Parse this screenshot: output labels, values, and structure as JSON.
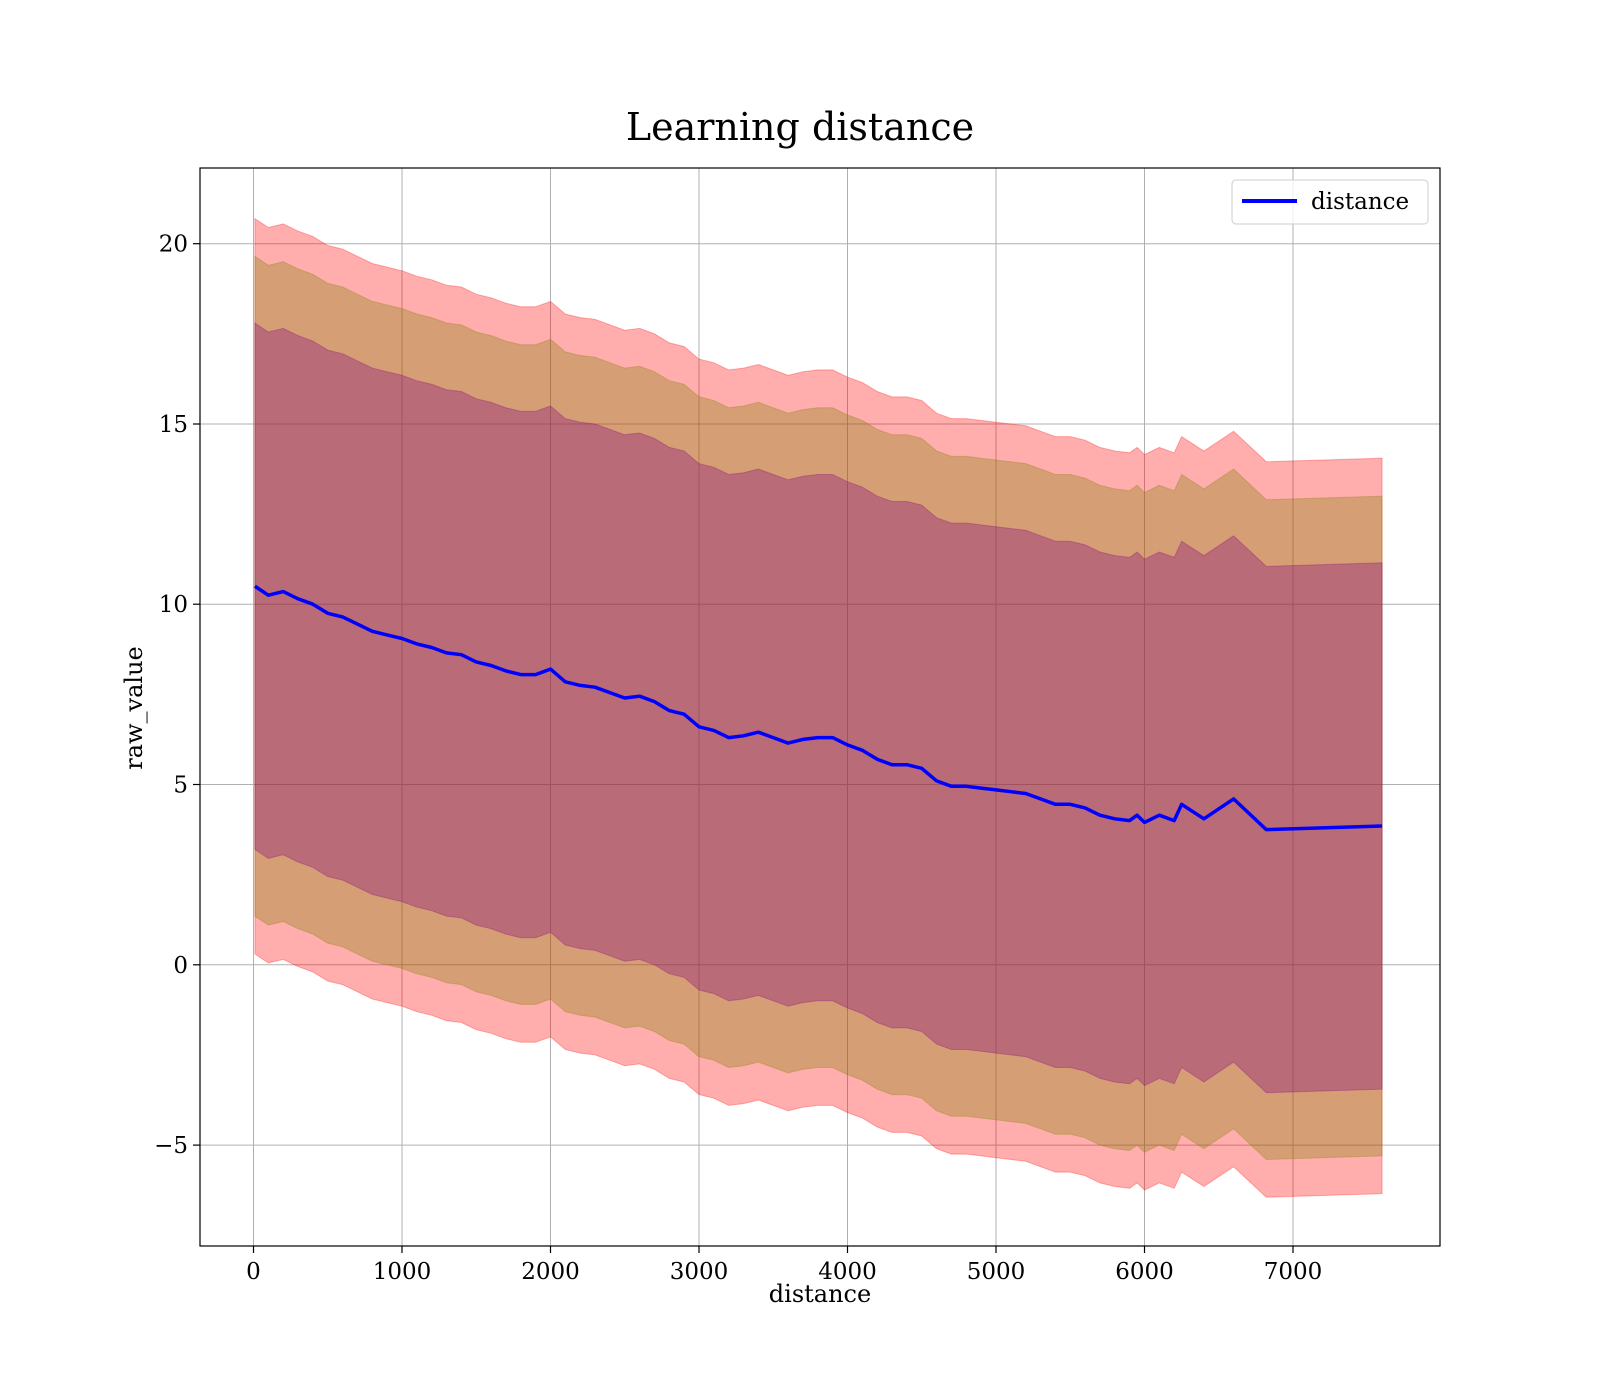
{
  "chart_data": {
    "type": "line",
    "title": "Learning distance",
    "xlabel": "distance",
    "ylabel": "raw_value",
    "xlim": [
      -360,
      7990
    ],
    "ylim": [
      -7.8,
      22.1
    ],
    "x_ticks": [
      0,
      1000,
      2000,
      3000,
      4000,
      5000,
      6000,
      7000
    ],
    "y_ticks": [
      -5,
      0,
      5,
      10,
      15,
      20
    ],
    "x_tick_labels": [
      "0",
      "1000",
      "2000",
      "3000",
      "4000",
      "5000",
      "6000",
      "7000"
    ],
    "y_tick_labels": [
      "−5",
      "0",
      "5",
      "10",
      "15",
      "20"
    ],
    "grid": true,
    "legend_position": "top-right",
    "x": [
      10,
      100,
      200,
      300,
      400,
      500,
      600,
      700,
      800,
      900,
      1000,
      1100,
      1200,
      1300,
      1400,
      1500,
      1600,
      1700,
      1800,
      1900,
      2000,
      2100,
      2200,
      2300,
      2400,
      2500,
      2600,
      2700,
      2800,
      2900,
      3000,
      3100,
      3200,
      3300,
      3400,
      3500,
      3600,
      3700,
      3800,
      3900,
      4000,
      4100,
      4200,
      4300,
      4400,
      4500,
      4600,
      4700,
      4800,
      4900,
      5000,
      5100,
      5200,
      5300,
      5400,
      5500,
      5600,
      5700,
      5800,
      5900,
      5950,
      6000,
      6100,
      6200,
      6250,
      6400,
      6600,
      6820,
      7600
    ],
    "series": [
      {
        "name": "distance",
        "color": "#0000ff",
        "values": [
          10.5,
          10.25,
          10.35,
          10.15,
          10.0,
          9.75,
          9.65,
          9.45,
          9.25,
          9.15,
          9.05,
          8.9,
          8.8,
          8.65,
          8.6,
          8.4,
          8.3,
          8.15,
          8.05,
          8.05,
          8.2,
          7.85,
          7.75,
          7.7,
          7.55,
          7.4,
          7.45,
          7.3,
          7.05,
          6.95,
          6.6,
          6.5,
          6.3,
          6.35,
          6.45,
          6.3,
          6.15,
          6.25,
          6.3,
          6.3,
          6.1,
          5.95,
          5.7,
          5.55,
          5.55,
          5.45,
          5.1,
          4.95,
          4.95,
          4.9,
          4.85,
          4.8,
          4.75,
          4.6,
          4.45,
          4.45,
          4.35,
          4.15,
          4.05,
          4.0,
          4.15,
          3.95,
          4.15,
          4.0,
          4.45,
          4.05,
          4.6,
          3.75,
          3.85
        ]
      }
    ],
    "bands": [
      {
        "color": "#ff0000",
        "opacity": 0.32,
        "half_width": 10.2
      },
      {
        "color": "#808000",
        "opacity": 0.32,
        "half_width": 9.15
      },
      {
        "color": "#800080",
        "opacity": 0.32,
        "half_width": 7.3
      }
    ]
  }
}
